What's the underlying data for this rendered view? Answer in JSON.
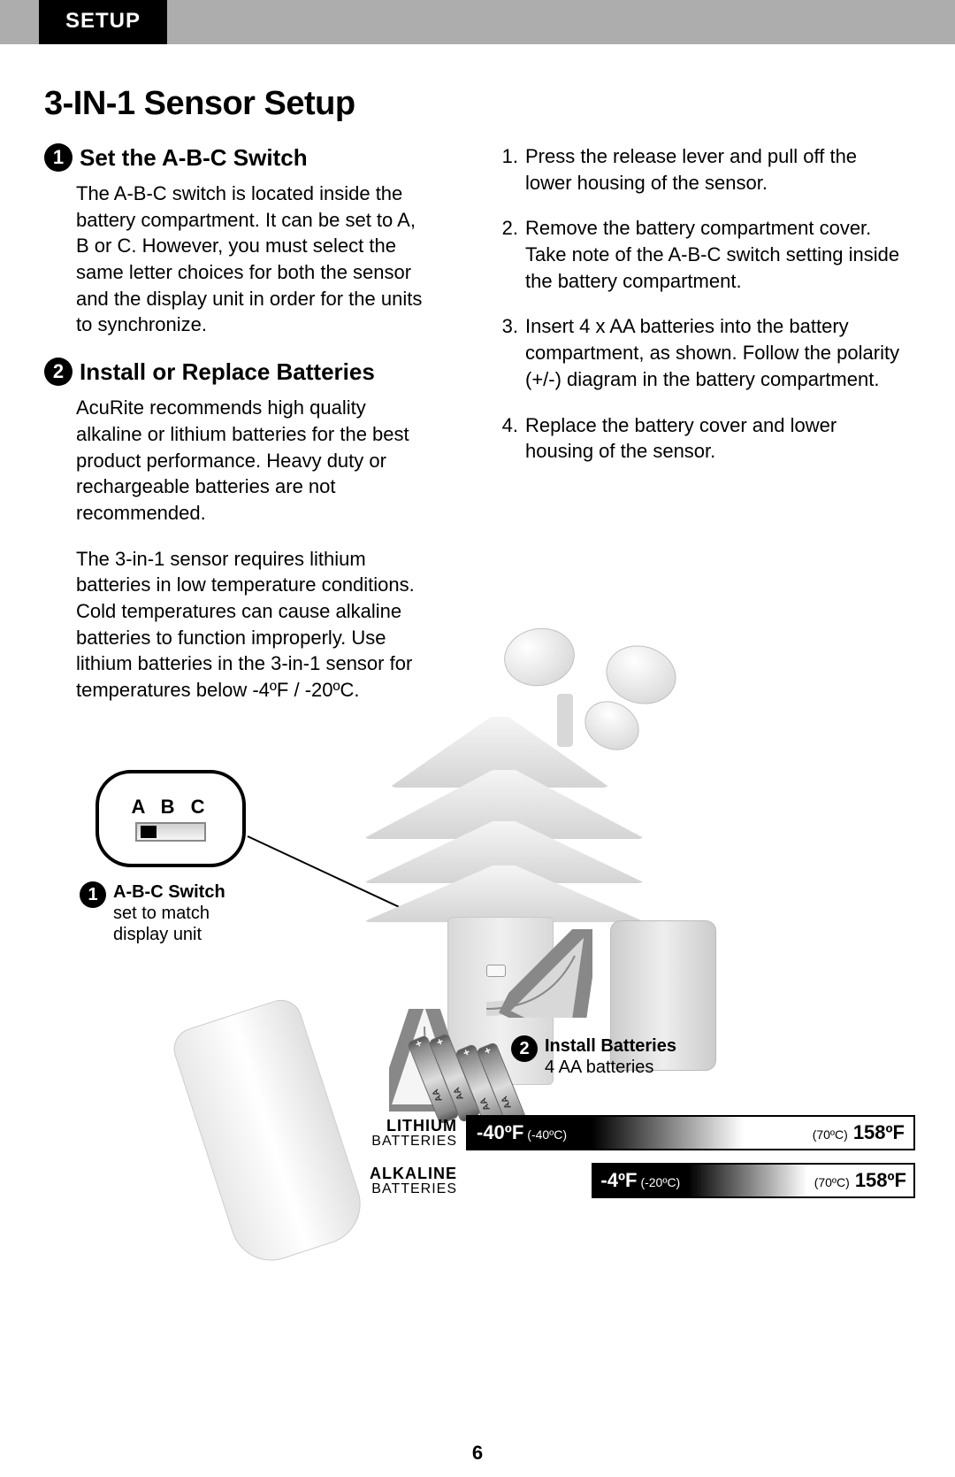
{
  "header": {
    "tab": "SETUP"
  },
  "title": "3-IN-1 Sensor Setup",
  "left": {
    "step1": {
      "heading": "Set the A-B-C Switch",
      "body": "The A-B-C switch is located inside the battery compartment. It can be set to A, B or C. However, you must select the same letter choices for both the sensor and the display unit in order for the units to synchronize."
    },
    "step2": {
      "heading": "Install or Replace Batteries",
      "body1": "AcuRite recommends high quality alkaline or lithium batteries for the best product performance. Heavy duty or rechargeable batteries are not recommended.",
      "body2": "The 3-in-1 sensor requires lithium batteries in low temperature conditions. Cold temperatures can cause alkaline batteries to function improperly. Use lithium batteries in the 3-in-1 sensor for temperatures below -4ºF / -20ºC."
    }
  },
  "right": {
    "items": [
      {
        "n": "1.",
        "t": "Press the release lever and pull off the lower housing of the sensor."
      },
      {
        "n": "2.",
        "t": "Remove the battery compartment cover. Take note of the A-B-C switch setting inside the battery compartment."
      },
      {
        "n": "3.",
        "t": "Insert 4 x AA batteries into the battery compartment, as shown. Follow the polarity (+/-) diagram in the battery compartment."
      },
      {
        "n": "4.",
        "t": "Replace the battery cover and lower housing of the sensor."
      }
    ]
  },
  "diagram": {
    "abc_label": "A B C",
    "callout1": {
      "num": "1",
      "title": "A-B-C Switch",
      "l1": "set to match",
      "l2": "display unit"
    },
    "callout2": {
      "num": "2",
      "title": "Install Batteries",
      "l1": "4 AA batteries"
    }
  },
  "temps": {
    "lithium": {
      "label1": "LITHIUM",
      "label2": "BATTERIES",
      "low_f": "-40ºF",
      "low_c": "(-40ºC)",
      "high_c": "(70ºC)",
      "high_f": "158ºF",
      "fill_pct": 62
    },
    "alkaline": {
      "label1": "ALKALINE",
      "label2": "BATTERIES",
      "low_f": "-4ºF",
      "low_c": "(-20ºC)",
      "high_c": "(70ºC)",
      "high_f": "158ºF",
      "offset_pct": 28,
      "fill_pct": 48
    }
  },
  "page": "6",
  "colors": {
    "gray_bar": "#adadad",
    "black": "#000000",
    "white": "#ffffff",
    "sensor_light": "#e8e8e8",
    "sensor_dark": "#c0c0c0"
  }
}
